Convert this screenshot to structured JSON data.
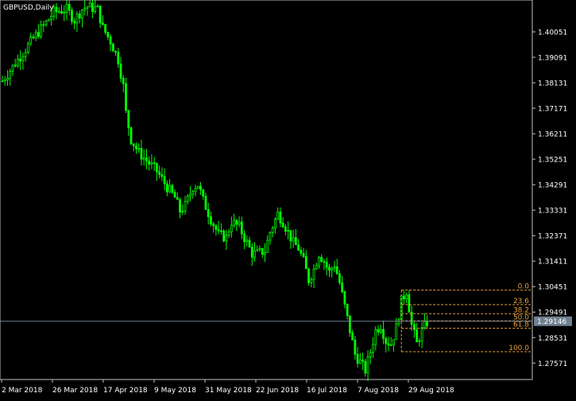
{
  "symbol_label": "GBPUSD,Daily",
  "current_price_label": "1.29146",
  "colors": {
    "background": "#000000",
    "candle": "#00ff00",
    "axis": "#c0c0c0",
    "text": "#ffffff",
    "fib": "#e8a040",
    "price_line": "#708090",
    "price_box": "#708090"
  },
  "chart_data": {
    "type": "candlestick",
    "title": "GBPUSD,Daily",
    "xlabel": "",
    "ylabel": "",
    "ylim": [
      1.2695,
      1.4125
    ],
    "grid": false,
    "y_ticks": [
      "1.40051",
      "1.39091",
      "1.38131",
      "1.37171",
      "1.36211",
      "1.35251",
      "1.34291",
      "1.33331",
      "1.32371",
      "1.31411",
      "1.30451",
      "1.29491",
      "1.28531",
      "1.27571"
    ],
    "x_ticks": [
      "2 Mar 2018",
      "26 Mar 2018",
      "17 Apr 2018",
      "9 May 2018",
      "31 May 2018",
      "22 Jun 2018",
      "16 Jul 2018",
      "7 Aug 2018",
      "29 Aug 2018"
    ],
    "current_price": 1.29146,
    "close_path": [
      [
        0,
        1.382
      ],
      [
        6,
        1.39
      ],
      [
        12,
        1.398
      ],
      [
        17,
        1.404
      ],
      [
        20,
        1.408
      ],
      [
        25,
        1.409
      ],
      [
        28,
        1.405
      ],
      [
        31,
        1.409
      ],
      [
        33,
        1.41
      ],
      [
        37,
        1.409
      ],
      [
        39,
        1.402
      ],
      [
        42,
        1.397
      ],
      [
        45,
        1.39
      ],
      [
        47,
        1.38
      ],
      [
        48,
        1.37
      ],
      [
        50,
        1.36
      ],
      [
        53,
        1.355
      ],
      [
        57,
        1.351
      ],
      [
        60,
        1.348
      ],
      [
        64,
        1.342
      ],
      [
        67,
        1.338
      ],
      [
        69,
        1.333
      ],
      [
        71,
        1.335
      ],
      [
        74,
        1.342
      ],
      [
        76,
        1.343
      ],
      [
        78,
        1.337
      ],
      [
        81,
        1.33
      ],
      [
        84,
        1.324
      ],
      [
        87,
        1.323
      ],
      [
        89,
        1.329
      ],
      [
        92,
        1.327
      ],
      [
        95,
        1.321
      ],
      [
        97,
        1.317
      ],
      [
        99,
        1.317
      ],
      [
        102,
        1.318
      ],
      [
        104,
        1.325
      ],
      [
        107,
        1.332
      ],
      [
        109,
        1.329
      ],
      [
        111,
        1.325
      ],
      [
        113,
        1.321
      ],
      [
        115,
        1.319
      ],
      [
        117,
        1.314
      ],
      [
        119,
        1.307
      ],
      [
        121,
        1.311
      ],
      [
        123,
        1.317
      ],
      [
        125,
        1.314
      ],
      [
        127,
        1.31
      ],
      [
        129,
        1.313
      ],
      [
        131,
        1.306
      ],
      [
        133,
        1.297
      ],
      [
        135,
        1.288
      ],
      [
        137,
        1.279
      ],
      [
        139,
        1.276
      ],
      [
        141,
        1.273
      ],
      [
        143,
        1.28
      ],
      [
        145,
        1.288
      ],
      [
        147,
        1.29
      ],
      [
        149,
        1.284
      ],
      [
        151,
        1.283
      ],
      [
        153,
        1.289
      ],
      [
        155,
        1.299
      ],
      [
        157,
        1.303
      ],
      [
        159,
        1.29
      ],
      [
        161,
        1.283
      ],
      [
        163,
        1.288
      ],
      [
        165,
        1.291
      ]
    ],
    "fibonacci": {
      "levels": [
        {
          "label": "0.0",
          "price": 1.3032
        },
        {
          "label": "23.6",
          "price": 1.2977
        },
        {
          "label": "38.2",
          "price": 1.2943
        },
        {
          "label": "50.0",
          "price": 1.2916
        },
        {
          "label": "61.8",
          "price": 1.2888
        },
        {
          "label": "100.0",
          "price": 1.28
        }
      ],
      "start_x": 155,
      "end_x": 160
    }
  }
}
